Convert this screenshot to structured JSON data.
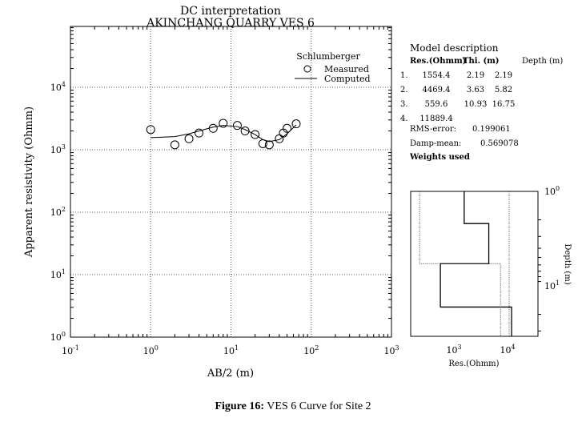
{
  "caption": {
    "bold": "Figure 16:",
    "rest": " VES 6 Curve for Site 2"
  },
  "chart_data": [
    {
      "type": "scatter",
      "title": "DC interpretation",
      "subtitle": "AKINCHANG QUARRY VES 6",
      "xlabel": "AB/2 (m)",
      "ylabel": "Apparent resistivity (Ohmm)",
      "xscale": "log",
      "yscale": "log",
      "xlim": [
        0.1,
        1000
      ],
      "ylim": [
        1,
        100000
      ],
      "xticks": [
        "10-1",
        "100",
        "101",
        "102",
        "103"
      ],
      "yticks": [
        "100",
        "101",
        "102",
        "103",
        "104"
      ],
      "legend": {
        "title": "Schlumberger",
        "placement": "top-right",
        "entries": [
          "Measured",
          "Computed"
        ]
      },
      "measured": {
        "x": [
          1,
          2,
          3,
          4,
          6,
          8,
          12,
          15,
          20,
          25,
          30,
          40,
          45,
          50,
          65
        ],
        "y": [
          2100,
          1200,
          1500,
          1850,
          2200,
          2650,
          2450,
          2000,
          1750,
          1250,
          1200,
          1500,
          1850,
          2200,
          2600
        ]
      },
      "computed": {
        "x": [
          1,
          2,
          3,
          4,
          6,
          8,
          12,
          15,
          20,
          25,
          30,
          40,
          50,
          65
        ],
        "y": [
          1560,
          1620,
          1800,
          2000,
          2300,
          2450,
          2350,
          2100,
          1750,
          1450,
          1350,
          1450,
          1800,
          2500
        ]
      }
    },
    {
      "type": "line",
      "xlabel": "Res.(Ohmm)",
      "ylabel": "Depth (m)",
      "xscale": "log",
      "yscale": "log",
      "xticks": [
        "103",
        "104"
      ],
      "yticks": [
        "100",
        "101"
      ],
      "model": {
        "res": [
          1554.4,
          4469.4,
          559.6,
          11889.4
        ],
        "depth": [
          2.19,
          5.82,
          16.75
        ]
      },
      "bounds": {
        "low": {
          "res": [
            230,
            7400
          ],
          "depth": [
            5.82
          ]
        },
        "high": {
          "res": [
            10700
          ]
        }
      }
    }
  ],
  "model_description": {
    "title": "Model description",
    "headers": [
      "Res.(Ohmm)",
      "Thi. (m)",
      "Depth (m)"
    ],
    "rows": [
      [
        "1.",
        "1554.4",
        "2.19",
        "2.19"
      ],
      [
        "2.",
        "4469.4",
        "3.63",
        "5.82"
      ],
      [
        "3.",
        "559.6",
        "10.93",
        "16.75"
      ],
      [
        "4.",
        "11889.4",
        "",
        ""
      ]
    ],
    "rms_label": "RMS-error:",
    "rms_value": "0.199061",
    "damp_label": "Damp-mean:",
    "damp_value": "0.569078",
    "weights": "Weights used"
  }
}
